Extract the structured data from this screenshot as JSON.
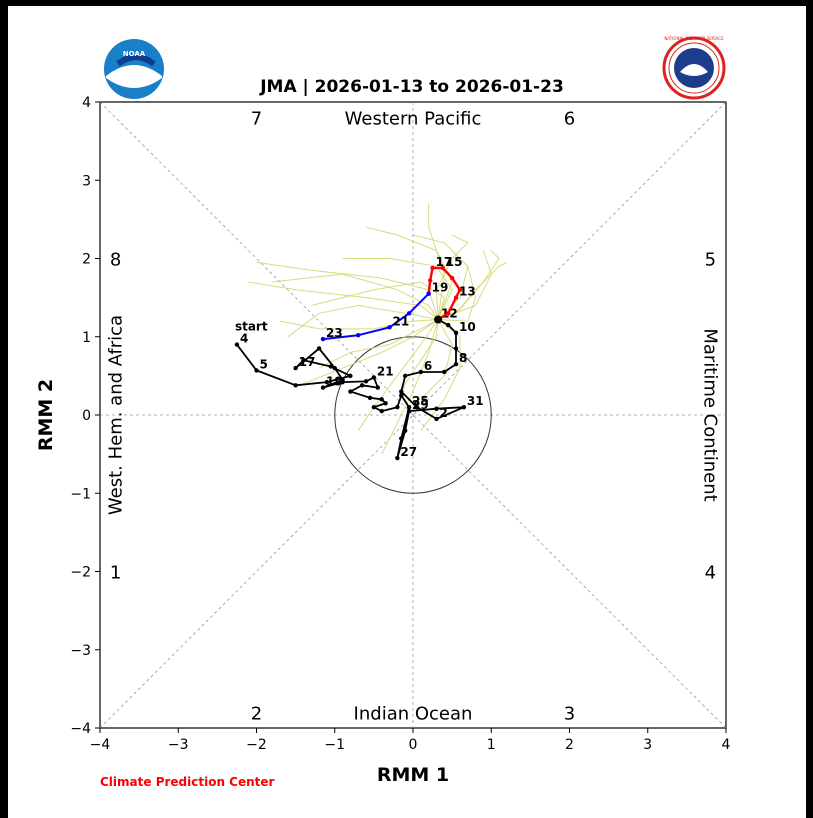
{
  "logos": {
    "noaa_text": "NOAA",
    "nws_text": "NATIONAL WEATHER SERVICE"
  },
  "footer": {
    "credit": "Climate Prediction Center"
  },
  "colors": {
    "observed": "#000000",
    "forecast_ensemble": "#d4d468",
    "forecast_mean_part1": "#ff0000",
    "forecast_mean_part2": "#0000ff",
    "credit": "#ff0000"
  },
  "chart_data": {
    "type": "line",
    "title": "JMA | 2026-01-13 to 2026-01-23",
    "xlabel": "RMM 1",
    "ylabel": "RMM 2",
    "xlim": [
      -4,
      4
    ],
    "ylim": [
      -4,
      4
    ],
    "xticks": [
      "−4",
      "−3",
      "−2",
      "−1",
      "0",
      "1",
      "2",
      "3",
      "4"
    ],
    "yticks": [
      "−4",
      "−3",
      "−2",
      "−1",
      "0",
      "1",
      "2",
      "3",
      "4"
    ],
    "phase_numbers": [
      {
        "label": "7",
        "x": -2,
        "y": 3.8
      },
      {
        "label": "6",
        "x": 2,
        "y": 3.8
      },
      {
        "label": "8",
        "x": -3.8,
        "y": 2
      },
      {
        "label": "5",
        "x": 3.8,
        "y": 2
      },
      {
        "label": "1",
        "x": -3.8,
        "y": -2
      },
      {
        "label": "4",
        "x": 3.8,
        "y": -2
      },
      {
        "label": "2",
        "x": -2,
        "y": -3.8
      },
      {
        "label": "3",
        "x": 2,
        "y": -3.8
      }
    ],
    "region_labels": {
      "top": "Western Pacific",
      "bottom": "Indian Ocean",
      "left": "West. Hem. and Africa",
      "right": "Maritime Continent"
    },
    "start_label": "start",
    "unit_circle_radius": 1,
    "observed": [
      {
        "x": -2.25,
        "y": 0.9,
        "label": "4"
      },
      {
        "x": -2.0,
        "y": 0.57,
        "label": "5"
      },
      {
        "x": -1.5,
        "y": 0.38
      },
      {
        "x": -1.1,
        "y": 0.42
      },
      {
        "x": -0.8,
        "y": 0.5
      },
      {
        "x": -1.05,
        "y": 0.62
      },
      {
        "x": -1.4,
        "y": 0.7
      },
      {
        "x": -1.5,
        "y": 0.6,
        "label": "17"
      },
      {
        "x": -1.2,
        "y": 0.85
      },
      {
        "x": -1.0,
        "y": 0.6
      },
      {
        "x": -0.9,
        "y": 0.45
      },
      {
        "x": -1.15,
        "y": 0.35,
        "label": "19"
      },
      {
        "x": -0.9,
        "y": 0.42
      },
      {
        "x": -0.6,
        "y": 0.43
      },
      {
        "x": -0.5,
        "y": 0.48,
        "label": "21"
      },
      {
        "x": -0.45,
        "y": 0.35
      },
      {
        "x": -0.65,
        "y": 0.38
      },
      {
        "x": -0.8,
        "y": 0.3
      },
      {
        "x": -0.55,
        "y": 0.22
      },
      {
        "x": -0.4,
        "y": 0.2
      },
      {
        "x": -0.35,
        "y": 0.15
      },
      {
        "x": -0.5,
        "y": 0.1
      },
      {
        "x": -0.4,
        "y": 0.05
      },
      {
        "x": -0.2,
        "y": 0.1
      },
      {
        "x": -0.15,
        "y": 0.25
      },
      {
        "x": -0.05,
        "y": 0.1,
        "label": "25"
      },
      {
        "x": -0.15,
        "y": -0.3
      },
      {
        "x": -0.2,
        "y": -0.55,
        "label": "27"
      },
      {
        "x": -0.1,
        "y": -0.2
      },
      {
        "x": -0.05,
        "y": 0.05,
        "label": "29"
      },
      {
        "x": 0.3,
        "y": 0.08
      },
      {
        "x": 0.65,
        "y": 0.1,
        "label": "31"
      },
      {
        "x": 0.3,
        "y": -0.05,
        "label": "2"
      },
      {
        "x": 0.05,
        "y": 0.1
      },
      {
        "x": -0.15,
        "y": 0.3
      },
      {
        "x": -0.1,
        "y": 0.5
      },
      {
        "x": 0.1,
        "y": 0.55,
        "label": "6"
      },
      {
        "x": 0.4,
        "y": 0.55
      },
      {
        "x": 0.55,
        "y": 0.65,
        "label": "8"
      },
      {
        "x": 0.55,
        "y": 0.85
      },
      {
        "x": 0.55,
        "y": 1.05,
        "label": "10"
      },
      {
        "x": 0.45,
        "y": 1.15
      },
      {
        "x": 0.32,
        "y": 1.22,
        "label": "12"
      }
    ],
    "forecast_mean_red": [
      {
        "x": 0.32,
        "y": 1.22
      },
      {
        "x": 0.45,
        "y": 1.3
      },
      {
        "x": 0.55,
        "y": 1.5,
        "label": "13"
      },
      {
        "x": 0.6,
        "y": 1.6
      },
      {
        "x": 0.5,
        "y": 1.75
      },
      {
        "x": 0.38,
        "y": 1.88,
        "label": "15"
      },
      {
        "x": 0.25,
        "y": 1.88,
        "label": "17"
      },
      {
        "x": 0.22,
        "y": 1.72
      },
      {
        "x": 0.2,
        "y": 1.55,
        "label": "19"
      }
    ],
    "forecast_mean_blue": [
      {
        "x": 0.2,
        "y": 1.55
      },
      {
        "x": -0.05,
        "y": 1.3
      },
      {
        "x": -0.3,
        "y": 1.12,
        "label": "21"
      },
      {
        "x": -0.7,
        "y": 1.02
      },
      {
        "x": -1.15,
        "y": 0.97,
        "label": "23"
      }
    ],
    "ensemble_members": [
      [
        [
          0.32,
          1.22
        ],
        [
          0.2,
          1.6
        ],
        [
          -0.4,
          1.75
        ],
        [
          -1.3,
          1.85
        ],
        [
          -2.0,
          1.95
        ]
      ],
      [
        [
          0.32,
          1.22
        ],
        [
          0.5,
          1.7
        ],
        [
          0.3,
          2.1
        ],
        [
          -0.2,
          2.3
        ],
        [
          -0.6,
          2.4
        ]
      ],
      [
        [
          0.32,
          1.22
        ],
        [
          0.6,
          1.5
        ],
        [
          0.7,
          1.9
        ],
        [
          0.4,
          2.2
        ],
        [
          0.0,
          2.3
        ]
      ],
      [
        [
          0.32,
          1.22
        ],
        [
          0.1,
          1.4
        ],
        [
          -0.6,
          1.5
        ],
        [
          -1.5,
          1.6
        ],
        [
          -2.1,
          1.7
        ]
      ],
      [
        [
          0.32,
          1.22
        ],
        [
          0.55,
          1.3
        ],
        [
          0.8,
          1.6
        ],
        [
          1.1,
          1.9
        ],
        [
          1.2,
          1.95
        ]
      ],
      [
        [
          0.32,
          1.22
        ],
        [
          0.4,
          1.8
        ],
        [
          0.2,
          2.4
        ],
        [
          0.2,
          2.7
        ]
      ],
      [
        [
          0.32,
          1.22
        ],
        [
          0.0,
          1.2
        ],
        [
          -0.5,
          1.1
        ],
        [
          -1.2,
          1.1
        ],
        [
          -1.7,
          1.2
        ]
      ],
      [
        [
          0.32,
          1.22
        ],
        [
          0.7,
          1.2
        ],
        [
          0.8,
          1.5
        ],
        [
          0.7,
          1.9
        ],
        [
          0.5,
          2.1
        ]
      ],
      [
        [
          0.32,
          1.22
        ],
        [
          0.3,
          1.0
        ],
        [
          0.1,
          0.7
        ],
        [
          -0.1,
          0.4
        ],
        [
          -0.2,
          0.1
        ]
      ],
      [
        [
          0.32,
          1.22
        ],
        [
          0.1,
          0.9
        ],
        [
          -0.2,
          0.5
        ],
        [
          -0.5,
          0.1
        ],
        [
          -0.7,
          -0.2
        ]
      ],
      [
        [
          0.32,
          1.22
        ],
        [
          0.6,
          1.0
        ],
        [
          0.6,
          0.6
        ],
        [
          0.4,
          0.2
        ],
        [
          0.1,
          -0.2
        ]
      ],
      [
        [
          0.32,
          1.22
        ],
        [
          0.2,
          0.8
        ],
        [
          0.0,
          0.3
        ],
        [
          -0.2,
          -0.1
        ],
        [
          -0.4,
          -0.5
        ]
      ],
      [
        [
          0.32,
          1.22
        ],
        [
          -0.1,
          1.3
        ],
        [
          -0.7,
          1.4
        ],
        [
          -1.2,
          1.3
        ],
        [
          -1.6,
          1.0
        ]
      ],
      [
        [
          0.32,
          1.22
        ],
        [
          0.5,
          1.6
        ],
        [
          0.3,
          1.9
        ],
        [
          -0.3,
          2.0
        ],
        [
          -0.9,
          2.0
        ]
      ],
      [
        [
          0.32,
          1.22
        ],
        [
          0.8,
          1.4
        ],
        [
          1.0,
          1.8
        ],
        [
          0.9,
          2.1
        ]
      ],
      [
        [
          0.32,
          1.22
        ],
        [
          0.4,
          1.5
        ],
        [
          0.1,
          1.7
        ],
        [
          -0.5,
          1.6
        ],
        [
          -1.3,
          1.4
        ]
      ],
      [
        [
          0.32,
          1.22
        ],
        [
          0.0,
          1.0
        ],
        [
          -0.4,
          0.8
        ],
        [
          -0.9,
          0.6
        ],
        [
          -1.4,
          0.4
        ]
      ],
      [
        [
          0.32,
          1.22
        ],
        [
          0.3,
          1.6
        ],
        [
          0.5,
          2.0
        ],
        [
          0.7,
          2.2
        ],
        [
          0.5,
          2.3
        ]
      ],
      [
        [
          0.32,
          1.22
        ],
        [
          0.6,
          1.35
        ],
        [
          0.9,
          1.7
        ],
        [
          1.1,
          2.0
        ],
        [
          1.0,
          2.1
        ]
      ],
      [
        [
          0.32,
          1.22
        ],
        [
          0.2,
          1.4
        ],
        [
          -0.2,
          1.6
        ],
        [
          -0.9,
          1.8
        ],
        [
          -1.8,
          1.7
        ]
      ],
      [
        [
          0.32,
          1.22
        ],
        [
          0.5,
          0.9
        ],
        [
          0.4,
          0.5
        ],
        [
          0.2,
          0.3
        ],
        [
          0.1,
          0.2
        ]
      ],
      [
        [
          0.32,
          1.22
        ],
        [
          0.1,
          1.1
        ],
        [
          -0.3,
          0.9
        ],
        [
          -0.8,
          0.8
        ],
        [
          -1.2,
          0.6
        ]
      ]
    ]
  }
}
